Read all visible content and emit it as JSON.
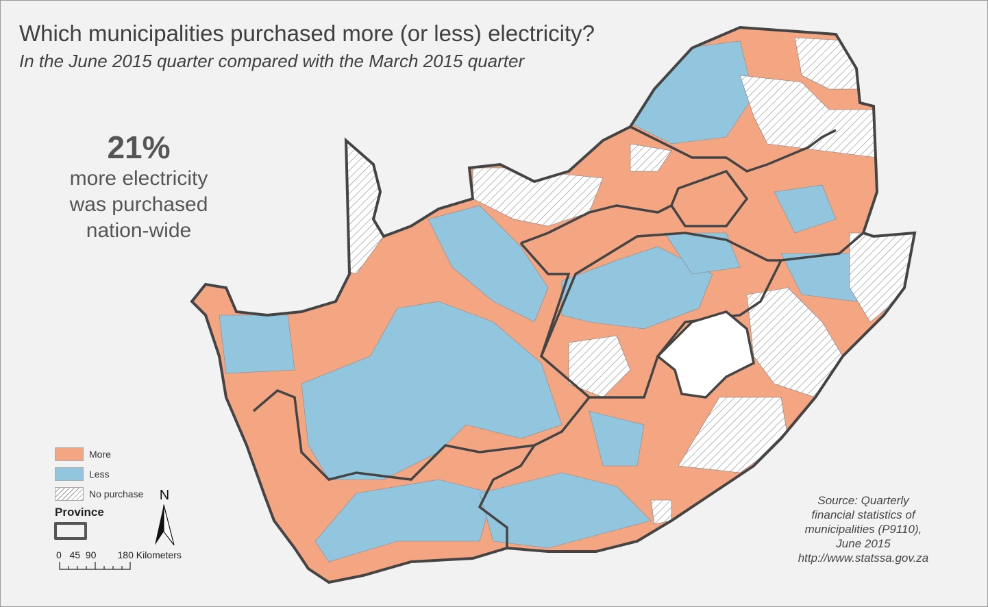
{
  "title": "Which municipalities purchased more (or less) electricity?",
  "subtitle": "In the June 2015 quarter compared with the March 2015 quarter",
  "stat": {
    "value": "21%",
    "line1": "more electricity",
    "line2": "was purchased",
    "line3": "nation-wide"
  },
  "legend": {
    "items": [
      {
        "label": "More",
        "color": "#f4a582"
      },
      {
        "label": "Less",
        "color": "#92c5de"
      },
      {
        "label": "No purchase",
        "color": "hatched"
      }
    ],
    "province_label": "Province"
  },
  "scale": {
    "ticks": "0   45  90        180",
    "unit": "Kilometers"
  },
  "north": "N",
  "source": {
    "line1": "Source: Quarterly",
    "line2": "financial statistics of",
    "line3": "municipalities (P9110),",
    "line4": "June 2015",
    "line5": "http://www.statssa.gov.za"
  }
}
